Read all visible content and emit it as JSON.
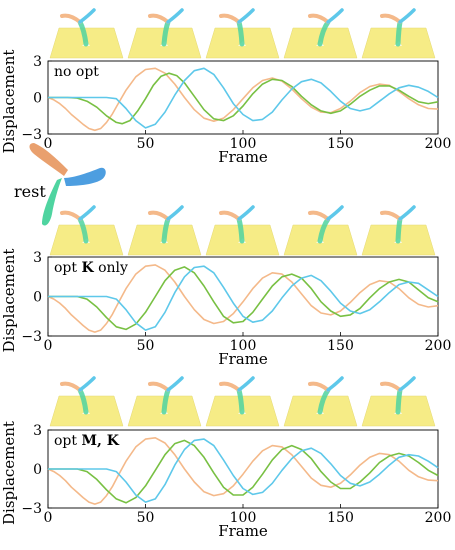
{
  "colors": {
    "orange": "#f4b98a",
    "green": "#78c043",
    "blue": "#5ec8ea",
    "ground": "#f6ec86",
    "rest_orange": "#e9a06e",
    "rest_green": "#4fd4a0",
    "rest_blue": "#4d9ee0"
  },
  "rest_label": "rest",
  "chart_data": [
    {
      "type": "line",
      "panel_label": "no opt",
      "xlabel": "Frame",
      "ylabel": "Displacement",
      "xlim": [
        0,
        200
      ],
      "ylim": [
        -3,
        3
      ],
      "xticks": [
        0,
        50,
        100,
        150,
        200
      ],
      "yticks": [
        3,
        0,
        -3
      ],
      "ytick_labels": [
        "3",
        "0",
        "−3"
      ],
      "series": [
        {
          "color_key": "orange",
          "x": [
            0,
            3,
            6,
            9,
            12,
            15,
            18,
            21,
            24,
            27,
            30,
            33,
            36,
            40,
            45,
            50,
            55,
            60,
            65,
            70,
            75,
            80,
            85,
            90,
            95,
            100,
            105,
            110,
            115,
            120,
            125,
            130,
            135,
            140,
            145,
            150,
            155,
            160,
            165,
            170,
            175,
            180,
            185,
            190,
            195,
            200
          ],
          "y": [
            0,
            -0.2,
            -0.5,
            -0.9,
            -1.4,
            -1.8,
            -2.2,
            -2.55,
            -2.7,
            -2.55,
            -2.05,
            -1.35,
            -0.5,
            0.6,
            1.7,
            2.3,
            2.4,
            2.0,
            1.1,
            0,
            -1.0,
            -1.7,
            -1.95,
            -1.7,
            -1.0,
            -0.1,
            0.8,
            1.4,
            1.6,
            1.35,
            0.7,
            -0.1,
            -0.8,
            -1.2,
            -1.25,
            -0.9,
            -0.3,
            0.4,
            0.9,
            1.1,
            1.0,
            0.5,
            -0.1,
            -0.6,
            -0.9,
            -0.95
          ]
        },
        {
          "color_key": "green",
          "x": [
            0,
            5,
            10,
            15,
            20,
            25,
            30,
            35,
            38,
            42,
            46,
            50,
            54,
            58,
            62,
            66,
            70,
            75,
            80,
            85,
            90,
            95,
            100,
            105,
            110,
            115,
            120,
            125,
            130,
            135,
            140,
            145,
            150,
            155,
            160,
            165,
            170,
            175,
            180,
            185,
            190,
            195,
            200
          ],
          "y": [
            0,
            0,
            0,
            -0.05,
            -0.3,
            -0.8,
            -1.5,
            -2.05,
            -2.15,
            -1.9,
            -1.1,
            -0.1,
            1.0,
            1.75,
            2.0,
            1.8,
            1.2,
            0.1,
            -1.0,
            -1.75,
            -1.9,
            -1.5,
            -0.7,
            0.3,
            1.1,
            1.5,
            1.4,
            0.9,
            0.1,
            -0.6,
            -1.1,
            -1.3,
            -1.1,
            -0.55,
            0.1,
            0.6,
            0.95,
            0.95,
            0.6,
            0.1,
            -0.35,
            -0.5,
            -0.35
          ]
        },
        {
          "color_key": "blue",
          "x": [
            0,
            5,
            10,
            15,
            20,
            25,
            30,
            35,
            40,
            45,
            50,
            55,
            60,
            65,
            70,
            75,
            80,
            85,
            90,
            95,
            100,
            105,
            110,
            115,
            120,
            125,
            130,
            135,
            140,
            145,
            150,
            155,
            160,
            165,
            170,
            175,
            180,
            185,
            190,
            195,
            200
          ],
          "y": [
            0,
            0,
            0,
            0,
            0,
            0,
            0,
            -0.1,
            -0.9,
            -1.9,
            -2.5,
            -2.2,
            -1.2,
            0.2,
            1.4,
            2.2,
            2.4,
            1.9,
            0.8,
            -0.5,
            -1.4,
            -1.9,
            -1.8,
            -1.2,
            -0.2,
            0.7,
            1.3,
            1.5,
            1.2,
            0.5,
            -0.3,
            -0.9,
            -1.1,
            -0.9,
            -0.3,
            0.3,
            0.8,
            1.0,
            0.85,
            0.5,
            0.0
          ]
        }
      ]
    },
    {
      "type": "line",
      "panel_label_parts": [
        "opt ",
        "K",
        " only"
      ],
      "xlabel": "Frame",
      "ylabel": "Displacement",
      "xlim": [
        0,
        200
      ],
      "ylim": [
        -3,
        3
      ],
      "xticks": [
        0,
        50,
        100,
        150,
        200
      ],
      "yticks": [
        3,
        0,
        -3
      ],
      "ytick_labels": [
        "3",
        "0",
        "−3"
      ],
      "series": [
        {
          "color_key": "orange",
          "x": [
            0,
            3,
            6,
            9,
            12,
            15,
            18,
            21,
            24,
            27,
            30,
            33,
            36,
            40,
            45,
            50,
            55,
            60,
            65,
            70,
            75,
            80,
            85,
            90,
            95,
            100,
            105,
            110,
            115,
            120,
            125,
            130,
            135,
            140,
            145,
            150,
            155,
            160,
            165,
            170,
            175,
            180,
            185,
            190,
            195,
            200
          ],
          "y": [
            0,
            -0.2,
            -0.5,
            -0.9,
            -1.4,
            -1.8,
            -2.2,
            -2.55,
            -2.7,
            -2.55,
            -2.05,
            -1.35,
            -0.5,
            0.6,
            1.7,
            2.3,
            2.4,
            2.0,
            1.1,
            0,
            -1.0,
            -1.75,
            -2.05,
            -1.9,
            -1.3,
            -0.4,
            0.6,
            1.4,
            1.8,
            1.7,
            1.1,
            0.2,
            -0.7,
            -1.25,
            -1.4,
            -1.1,
            -0.45,
            0.3,
            0.9,
            1.2,
            1.1,
            0.6,
            -0.1,
            -0.6,
            -0.8,
            -0.7
          ]
        },
        {
          "color_key": "green",
          "x": [
            0,
            5,
            10,
            15,
            20,
            25,
            30,
            35,
            40,
            45,
            50,
            55,
            60,
            65,
            70,
            75,
            80,
            85,
            90,
            95,
            100,
            105,
            110,
            115,
            120,
            125,
            130,
            135,
            140,
            145,
            150,
            155,
            160,
            165,
            170,
            175,
            180,
            185,
            190,
            195,
            200
          ],
          "y": [
            0,
            0,
            0,
            0,
            -0.2,
            -0.8,
            -1.6,
            -2.3,
            -2.5,
            -2.1,
            -1.2,
            0,
            1.2,
            2.0,
            2.25,
            1.8,
            0.8,
            -0.4,
            -1.5,
            -2.0,
            -1.9,
            -1.2,
            -0.2,
            0.8,
            1.5,
            1.7,
            1.4,
            0.6,
            -0.4,
            -1.1,
            -1.5,
            -1.4,
            -0.9,
            -0.1,
            0.6,
            1.1,
            1.3,
            1.1,
            0.5,
            -0.1,
            -0.4
          ]
        },
        {
          "color_key": "blue",
          "x": [
            0,
            5,
            10,
            15,
            20,
            25,
            30,
            35,
            40,
            45,
            50,
            55,
            60,
            65,
            70,
            75,
            80,
            85,
            90,
            95,
            100,
            105,
            110,
            115,
            120,
            125,
            130,
            135,
            140,
            145,
            150,
            155,
            160,
            165,
            170,
            175,
            180,
            185,
            190,
            195,
            200
          ],
          "y": [
            0,
            0,
            0,
            0,
            0,
            0,
            0,
            -0.2,
            -1.0,
            -2.0,
            -2.55,
            -2.3,
            -1.2,
            0.3,
            1.5,
            2.2,
            2.3,
            1.8,
            0.7,
            -0.5,
            -1.5,
            -1.95,
            -1.8,
            -1.1,
            -0.1,
            0.8,
            1.4,
            1.6,
            1.2,
            0.4,
            -0.5,
            -1.1,
            -1.3,
            -1.0,
            -0.4,
            0.3,
            0.9,
            1.1,
            1.0,
            0.5,
            0.0
          ]
        }
      ]
    },
    {
      "type": "line",
      "panel_label_parts": [
        "opt ",
        "M, K",
        ""
      ],
      "xlabel": "Frame",
      "ylabel": "Displacement",
      "xlim": [
        0,
        200
      ],
      "ylim": [
        -3,
        3
      ],
      "xticks": [
        0,
        50,
        100,
        150,
        200
      ],
      "yticks": [
        3,
        0,
        -3
      ],
      "ytick_labels": [
        "3",
        "0",
        "−3"
      ],
      "series": [
        {
          "color_key": "orange",
          "x": [
            0,
            3,
            6,
            9,
            12,
            15,
            18,
            21,
            24,
            27,
            30,
            33,
            36,
            40,
            45,
            50,
            55,
            60,
            65,
            70,
            75,
            80,
            85,
            90,
            95,
            100,
            105,
            110,
            115,
            120,
            125,
            130,
            135,
            140,
            145,
            150,
            155,
            160,
            165,
            170,
            175,
            180,
            185,
            190,
            195,
            200
          ],
          "y": [
            0,
            -0.2,
            -0.5,
            -0.9,
            -1.4,
            -1.8,
            -2.2,
            -2.55,
            -2.7,
            -2.55,
            -2.05,
            -1.35,
            -0.5,
            0.6,
            1.7,
            2.3,
            2.4,
            2.0,
            1.1,
            0,
            -1.0,
            -1.75,
            -2.05,
            -1.9,
            -1.3,
            -0.4,
            0.6,
            1.4,
            1.8,
            1.7,
            1.1,
            0.2,
            -0.7,
            -1.25,
            -1.4,
            -1.1,
            -0.45,
            0.3,
            0.9,
            1.2,
            1.1,
            0.6,
            -0.1,
            -0.6,
            -0.85,
            -0.9
          ]
        },
        {
          "color_key": "green",
          "x": [
            0,
            5,
            10,
            15,
            20,
            25,
            30,
            35,
            40,
            45,
            50,
            55,
            60,
            65,
            70,
            75,
            80,
            85,
            90,
            95,
            100,
            105,
            110,
            115,
            120,
            125,
            130,
            135,
            140,
            145,
            150,
            155,
            160,
            165,
            170,
            175,
            180,
            185,
            190,
            195,
            200
          ],
          "y": [
            0,
            0,
            0,
            0,
            -0.2,
            -0.8,
            -1.6,
            -2.3,
            -2.6,
            -2.2,
            -1.3,
            -0.1,
            1.1,
            1.95,
            2.2,
            1.8,
            0.9,
            -0.3,
            -1.4,
            -2.0,
            -2.0,
            -1.4,
            -0.4,
            0.7,
            1.5,
            1.8,
            1.5,
            0.8,
            -0.2,
            -1.0,
            -1.5,
            -1.5,
            -1.0,
            -0.3,
            0.5,
            1.0,
            1.2,
            1.0,
            0.5,
            -0.1,
            -0.5
          ]
        },
        {
          "color_key": "blue",
          "x": [
            0,
            5,
            10,
            15,
            20,
            25,
            30,
            35,
            40,
            45,
            50,
            55,
            60,
            65,
            70,
            75,
            80,
            85,
            90,
            95,
            100,
            105,
            110,
            115,
            120,
            125,
            130,
            135,
            140,
            145,
            150,
            155,
            160,
            165,
            170,
            175,
            180,
            185,
            190,
            195,
            200
          ],
          "y": [
            0,
            0,
            0,
            0,
            0,
            0,
            0,
            -0.2,
            -1.0,
            -2.0,
            -2.55,
            -2.3,
            -1.2,
            0.3,
            1.5,
            2.2,
            2.3,
            1.8,
            0.7,
            -0.5,
            -1.5,
            -1.95,
            -1.8,
            -1.1,
            -0.1,
            0.8,
            1.4,
            1.6,
            1.2,
            0.4,
            -0.5,
            -1.1,
            -1.3,
            -1.0,
            -0.4,
            0.3,
            0.9,
            1.1,
            1.0,
            0.6,
            0.1
          ]
        }
      ]
    }
  ]
}
